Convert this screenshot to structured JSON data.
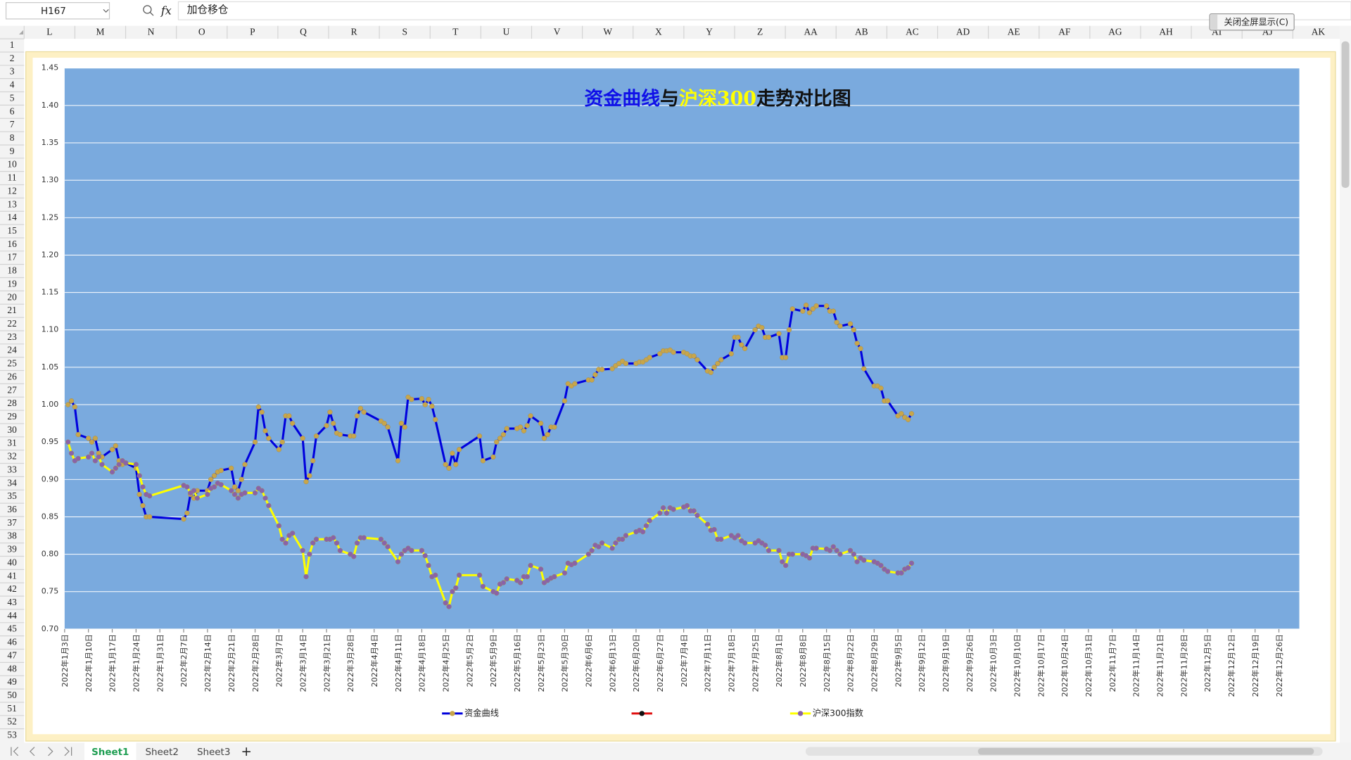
{
  "toolbar": {
    "name_box": "H167",
    "fx": "fx",
    "formula": "加仓移仓"
  },
  "button": "关闭全屏显示(C)",
  "columns": [
    "L",
    "M",
    "N",
    "O",
    "P",
    "Q",
    "R",
    "S",
    "T",
    "U",
    "V",
    "W",
    "X",
    "Y",
    "Z",
    "AA",
    "AB",
    "AC",
    "AD",
    "AE",
    "AF",
    "AG",
    "AH",
    "AI",
    "AJ",
    "AK"
  ],
  "rows": [
    1,
    2,
    3,
    4,
    5,
    6,
    7,
    8,
    9,
    10,
    11,
    12,
    13,
    14,
    15,
    16,
    17,
    18,
    19,
    20,
    21,
    22,
    23,
    24,
    25,
    26,
    27,
    28,
    29,
    30,
    31,
    32,
    33,
    34,
    35,
    36,
    37,
    38,
    39,
    40,
    41,
    42,
    43,
    44,
    45,
    46,
    47,
    48,
    49,
    50,
    51,
    52,
    53
  ],
  "sheet_tabs": [
    "Sheet1",
    "Sheet2",
    "Sheet3"
  ],
  "chart_data": {
    "type": "line",
    "title_segments": [
      {
        "text": "资金曲线",
        "color": "#1010e8"
      },
      {
        "text": "与",
        "color": "#111111"
      },
      {
        "text": "沪深300",
        "color": "#ffff00"
      },
      {
        "text": "走势对比图",
        "color": "#111111"
      }
    ],
    "plot_background": "#7aaade",
    "grid": true,
    "legend": "bottom",
    "x": [
      "2022-01-04",
      "2022-01-05",
      "2022-01-06",
      "2022-01-07",
      "2022-01-10",
      "2022-01-11",
      "2022-01-12",
      "2022-01-13",
      "2022-01-14",
      "2022-01-17",
      "2022-01-18",
      "2022-01-19",
      "2022-01-20",
      "2022-01-21",
      "2022-01-24",
      "2022-01-25",
      "2022-01-26",
      "2022-01-27",
      "2022-01-28",
      "2022-02-07",
      "2022-02-08",
      "2022-02-09",
      "2022-02-10",
      "2022-02-11",
      "2022-02-14",
      "2022-02-15",
      "2022-02-16",
      "2022-02-17",
      "2022-02-18",
      "2022-02-21",
      "2022-02-22",
      "2022-02-23",
      "2022-02-24",
      "2022-02-25",
      "2022-02-28",
      "2022-03-01",
      "2022-03-02",
      "2022-03-03",
      "2022-03-04",
      "2022-03-07",
      "2022-03-08",
      "2022-03-09",
      "2022-03-10",
      "2022-03-11",
      "2022-03-14",
      "2022-03-15",
      "2022-03-16",
      "2022-03-17",
      "2022-03-18",
      "2022-03-21",
      "2022-03-22",
      "2022-03-23",
      "2022-03-24",
      "2022-03-25",
      "2022-03-28",
      "2022-03-29",
      "2022-03-30",
      "2022-03-31",
      "2022-04-01",
      "2022-04-06",
      "2022-04-07",
      "2022-04-08",
      "2022-04-11",
      "2022-04-12",
      "2022-04-13",
      "2022-04-14",
      "2022-04-15",
      "2022-04-18",
      "2022-04-19",
      "2022-04-20",
      "2022-04-21",
      "2022-04-22",
      "2022-04-25",
      "2022-04-26",
      "2022-04-27",
      "2022-04-28",
      "2022-04-29",
      "2022-05-05",
      "2022-05-06",
      "2022-05-09",
      "2022-05-10",
      "2022-05-11",
      "2022-05-12",
      "2022-05-13",
      "2022-05-16",
      "2022-05-17",
      "2022-05-18",
      "2022-05-19",
      "2022-05-20",
      "2022-05-23",
      "2022-05-24",
      "2022-05-25",
      "2022-05-26",
      "2022-05-27",
      "2022-05-30",
      "2022-05-31",
      "2022-06-01",
      "2022-06-02",
      "2022-06-06",
      "2022-06-07",
      "2022-06-08",
      "2022-06-09",
      "2022-06-10",
      "2022-06-13",
      "2022-06-14",
      "2022-06-15",
      "2022-06-16",
      "2022-06-17",
      "2022-06-20",
      "2022-06-21",
      "2022-06-22",
      "2022-06-23",
      "2022-06-24",
      "2022-06-27",
      "2022-06-28",
      "2022-06-29",
      "2022-06-30",
      "2022-07-01",
      "2022-07-04",
      "2022-07-05",
      "2022-07-06",
      "2022-07-07",
      "2022-07-08",
      "2022-07-11",
      "2022-07-12",
      "2022-07-13",
      "2022-07-14",
      "2022-07-15",
      "2022-07-18",
      "2022-07-19",
      "2022-07-20",
      "2022-07-21",
      "2022-07-22",
      "2022-07-25",
      "2022-07-26",
      "2022-07-27",
      "2022-07-28",
      "2022-07-29",
      "2022-08-01",
      "2022-08-02",
      "2022-08-03",
      "2022-08-04",
      "2022-08-05",
      "2022-08-08",
      "2022-08-09",
      "2022-08-10",
      "2022-08-11",
      "2022-08-12",
      "2022-08-15",
      "2022-08-16",
      "2022-08-17",
      "2022-08-18",
      "2022-08-19",
      "2022-08-22",
      "2022-08-23",
      "2022-08-24",
      "2022-08-25",
      "2022-08-26",
      "2022-08-29",
      "2022-08-30",
      "2022-08-31",
      "2022-09-01",
      "2022-09-02",
      "2022-09-05",
      "2022-09-06",
      "2022-09-07",
      "2022-09-08",
      "2022-09-09"
    ],
    "series": [
      {
        "name": "资金曲线",
        "color": "#0000dd",
        "marker_color": "#c8a64a",
        "values": [
          1.0,
          1.005,
          0.997,
          0.96,
          0.955,
          0.95,
          0.955,
          0.935,
          0.93,
          0.94,
          0.945,
          0.925,
          0.92,
          0.922,
          0.915,
          0.88,
          0.865,
          0.85,
          0.85,
          0.847,
          0.855,
          0.88,
          0.875,
          0.885,
          0.885,
          0.9,
          0.905,
          0.91,
          0.912,
          0.915,
          0.89,
          0.885,
          0.9,
          0.92,
          0.95,
          0.997,
          0.99,
          0.965,
          0.955,
          0.94,
          0.95,
          0.985,
          0.985,
          0.975,
          0.955,
          0.897,
          0.905,
          0.925,
          0.958,
          0.972,
          0.99,
          0.975,
          0.962,
          0.96,
          0.958,
          0.958,
          0.985,
          0.995,
          0.99,
          0.978,
          0.975,
          0.97,
          0.925,
          0.975,
          0.97,
          1.01,
          1.007,
          1.008,
          1.0,
          1.007,
          0.998,
          0.98,
          0.92,
          0.915,
          0.935,
          0.92,
          0.94,
          0.958,
          0.925,
          0.93,
          0.95,
          0.955,
          0.96,
          0.968,
          0.968,
          0.97,
          0.965,
          0.972,
          0.985,
          0.975,
          0.955,
          0.96,
          0.97,
          0.97,
          1.005,
          1.028,
          1.025,
          1.028,
          1.033,
          1.033,
          1.04,
          1.047,
          1.047,
          1.048,
          1.052,
          1.055,
          1.058,
          1.055,
          1.055,
          1.057,
          1.057,
          1.06,
          1.063,
          1.068,
          1.072,
          1.072,
          1.073,
          1.07,
          1.07,
          1.068,
          1.065,
          1.065,
          1.06,
          1.045,
          1.043,
          1.05,
          1.055,
          1.06,
          1.068,
          1.09,
          1.09,
          1.08,
          1.075,
          1.1,
          1.105,
          1.103,
          1.09,
          1.09,
          1.095,
          1.063,
          1.063,
          1.1,
          1.128,
          1.125,
          1.133,
          1.123,
          1.128,
          1.132,
          1.132,
          1.125,
          1.125,
          1.11,
          1.105,
          1.108,
          1.1,
          1.082,
          1.075,
          1.048,
          1.025,
          1.025,
          1.022,
          1.005,
          1.005,
          0.985,
          0.988,
          0.983,
          0.98,
          0.988
        ]
      },
      {
        "name": "沪深300指数",
        "color": "#ffff00",
        "marker_color": "#8a62a8",
        "values": [
          0.95,
          0.935,
          0.925,
          0.928,
          0.93,
          0.935,
          0.925,
          0.93,
          0.92,
          0.91,
          0.915,
          0.92,
          0.925,
          0.922,
          0.92,
          0.905,
          0.89,
          0.88,
          0.878,
          0.892,
          0.89,
          0.882,
          0.885,
          0.875,
          0.88,
          0.888,
          0.89,
          0.895,
          0.893,
          0.885,
          0.88,
          0.875,
          0.88,
          0.882,
          0.882,
          0.888,
          0.885,
          0.875,
          0.865,
          0.838,
          0.82,
          0.815,
          0.825,
          0.828,
          0.805,
          0.77,
          0.8,
          0.815,
          0.82,
          0.82,
          0.82,
          0.822,
          0.815,
          0.805,
          0.8,
          0.797,
          0.815,
          0.822,
          0.822,
          0.82,
          0.815,
          0.81,
          0.79,
          0.8,
          0.805,
          0.808,
          0.805,
          0.805,
          0.798,
          0.785,
          0.77,
          0.772,
          0.735,
          0.73,
          0.75,
          0.755,
          0.772,
          0.772,
          0.757,
          0.75,
          0.748,
          0.76,
          0.762,
          0.767,
          0.765,
          0.762,
          0.77,
          0.77,
          0.785,
          0.78,
          0.762,
          0.765,
          0.768,
          0.77,
          0.775,
          0.788,
          0.786,
          0.788,
          0.8,
          0.805,
          0.812,
          0.81,
          0.815,
          0.808,
          0.815,
          0.82,
          0.82,
          0.825,
          0.83,
          0.832,
          0.83,
          0.838,
          0.845,
          0.855,
          0.862,
          0.855,
          0.862,
          0.86,
          0.863,
          0.865,
          0.858,
          0.858,
          0.852,
          0.84,
          0.832,
          0.833,
          0.82,
          0.82,
          0.825,
          0.822,
          0.825,
          0.818,
          0.815,
          0.815,
          0.818,
          0.815,
          0.812,
          0.805,
          0.805,
          0.79,
          0.785,
          0.8,
          0.8,
          0.8,
          0.798,
          0.795,
          0.808,
          0.808,
          0.807,
          0.805,
          0.81,
          0.805,
          0.8,
          0.805,
          0.8,
          0.79,
          0.795,
          0.792,
          0.79,
          0.788,
          0.785,
          0.78,
          0.777,
          0.775,
          0.775,
          0.78,
          0.782,
          0.788
        ]
      }
    ],
    "xlim": [
      "2022-01-03",
      "2023-01-01"
    ],
    "xticks": [
      {
        "value": "2022-01-03",
        "label": "2022年1月3日"
      },
      {
        "value": "2022-01-10",
        "label": "2022年1月10日"
      },
      {
        "value": "2022-01-17",
        "label": "2022年1月17日"
      },
      {
        "value": "2022-01-24",
        "label": "2022年1月24日"
      },
      {
        "value": "2022-01-31",
        "label": "2022年1月31日"
      },
      {
        "value": "2022-02-07",
        "label": "2022年2月7日"
      },
      {
        "value": "2022-02-14",
        "label": "2022年2月14日"
      },
      {
        "value": "2022-02-21",
        "label": "2022年2月21日"
      },
      {
        "value": "2022-02-28",
        "label": "2022年2月28日"
      },
      {
        "value": "2022-03-07",
        "label": "2022年3月7日"
      },
      {
        "value": "2022-03-14",
        "label": "2022年3月14日"
      },
      {
        "value": "2022-03-21",
        "label": "2022年3月21日"
      },
      {
        "value": "2022-03-28",
        "label": "2022年3月28日"
      },
      {
        "value": "2022-04-04",
        "label": "2022年4月4日"
      },
      {
        "value": "2022-04-11",
        "label": "2022年4月11日"
      },
      {
        "value": "2022-04-18",
        "label": "2022年4月18日"
      },
      {
        "value": "2022-04-25",
        "label": "2022年4月25日"
      },
      {
        "value": "2022-05-02",
        "label": "2022年5月2日"
      },
      {
        "value": "2022-05-09",
        "label": "2022年5月9日"
      },
      {
        "value": "2022-05-16",
        "label": "2022年5月16日"
      },
      {
        "value": "2022-05-23",
        "label": "2022年5月23日"
      },
      {
        "value": "2022-05-30",
        "label": "2022年5月30日"
      },
      {
        "value": "2022-06-06",
        "label": "2022年6月6日"
      },
      {
        "value": "2022-06-13",
        "label": "2022年6月13日"
      },
      {
        "value": "2022-06-20",
        "label": "2022年6月20日"
      },
      {
        "value": "2022-06-27",
        "label": "2022年6月27日"
      },
      {
        "value": "2022-07-04",
        "label": "2022年7月4日"
      },
      {
        "value": "2022-07-11",
        "label": "2022年7月11日"
      },
      {
        "value": "2022-07-18",
        "label": "2022年7月18日"
      },
      {
        "value": "2022-07-25",
        "label": "2022年7月25日"
      },
      {
        "value": "2022-08-01",
        "label": "2022年8月1日"
      },
      {
        "value": "2022-08-08",
        "label": "2022年8月8日"
      },
      {
        "value": "2022-08-15",
        "label": "2022年8月15日"
      },
      {
        "value": "2022-08-22",
        "label": "2022年8月22日"
      },
      {
        "value": "2022-08-29",
        "label": "2022年8月29日"
      },
      {
        "value": "2022-09-05",
        "label": "2022年9月5日"
      },
      {
        "value": "2022-09-12",
        "label": "2022年9月12日"
      },
      {
        "value": "2022-09-19",
        "label": "2022年9月19日"
      },
      {
        "value": "2022-09-26",
        "label": "2022年9月26日"
      },
      {
        "value": "2022-10-03",
        "label": "2022年10月3日"
      },
      {
        "value": "2022-10-10",
        "label": "2022年10月10日"
      },
      {
        "value": "2022-10-17",
        "label": "2022年10月17日"
      },
      {
        "value": "2022-10-24",
        "label": "2022年10月24日"
      },
      {
        "value": "2022-10-31",
        "label": "2022年10月31日"
      },
      {
        "value": "2022-11-07",
        "label": "2022年11月7日"
      },
      {
        "value": "2022-11-14",
        "label": "2022年11月14日"
      },
      {
        "value": "2022-11-21",
        "label": "2022年11月21日"
      },
      {
        "value": "2022-11-28",
        "label": "2022年11月28日"
      },
      {
        "value": "2022-12-05",
        "label": "2022年12月5日"
      },
      {
        "value": "2022-12-12",
        "label": "2022年12月12日"
      },
      {
        "value": "2022-12-19",
        "label": "2022年12月19日"
      },
      {
        "value": "2022-12-26",
        "label": "2022年12月26日"
      }
    ],
    "ylim": [
      0.7,
      1.45
    ],
    "yticks": [
      {
        "value": 0.7,
        "label": "0.70"
      },
      {
        "value": 0.75,
        "label": "0.75"
      },
      {
        "value": 0.8,
        "label": "0.80"
      },
      {
        "value": 0.85,
        "label": "0.85"
      },
      {
        "value": 0.9,
        "label": "0.90"
      },
      {
        "value": 0.95,
        "label": "0.95"
      },
      {
        "value": 1,
        "label": "1.00"
      },
      {
        "value": 1.05,
        "label": "1.05"
      },
      {
        "value": 1.1,
        "label": "1.10"
      },
      {
        "value": 1.15,
        "label": "1.15"
      },
      {
        "value": 1.2,
        "label": "1.20"
      },
      {
        "value": 1.25,
        "label": "1.25"
      },
      {
        "value": 1.3,
        "label": "1.30"
      },
      {
        "value": 1.35,
        "label": "1.35"
      },
      {
        "value": 1.4,
        "label": "1.40"
      },
      {
        "value": 1.45,
        "label": "1.45"
      }
    ]
  }
}
